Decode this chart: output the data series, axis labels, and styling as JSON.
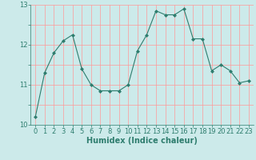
{
  "x": [
    0,
    1,
    2,
    3,
    4,
    5,
    6,
    7,
    8,
    9,
    10,
    11,
    12,
    13,
    14,
    15,
    16,
    17,
    18,
    19,
    20,
    21,
    22,
    23
  ],
  "y": [
    10.2,
    11.3,
    11.8,
    12.1,
    12.25,
    11.4,
    11.0,
    10.85,
    10.85,
    10.85,
    11.0,
    11.85,
    12.25,
    12.85,
    12.75,
    12.75,
    12.9,
    12.15,
    12.15,
    11.35,
    11.5,
    11.35,
    11.05,
    11.1
  ],
  "line_color": "#2e7d6e",
  "marker": "D",
  "marker_size": 2,
  "bg_color": "#cceaea",
  "grid_color": "#ff9999",
  "tick_color": "#2e7d6e",
  "label_color": "#2e7d6e",
  "xlabel": "Humidex (Indice chaleur)",
  "ylim": [
    10.0,
    13.0
  ],
  "xlim": [
    -0.5,
    23.5
  ],
  "yticks": [
    10,
    11,
    12,
    13
  ],
  "xticks": [
    0,
    1,
    2,
    3,
    4,
    5,
    6,
    7,
    8,
    9,
    10,
    11,
    12,
    13,
    14,
    15,
    16,
    17,
    18,
    19,
    20,
    21,
    22,
    23
  ],
  "figsize": [
    3.2,
    2.0
  ],
  "dpi": 100
}
